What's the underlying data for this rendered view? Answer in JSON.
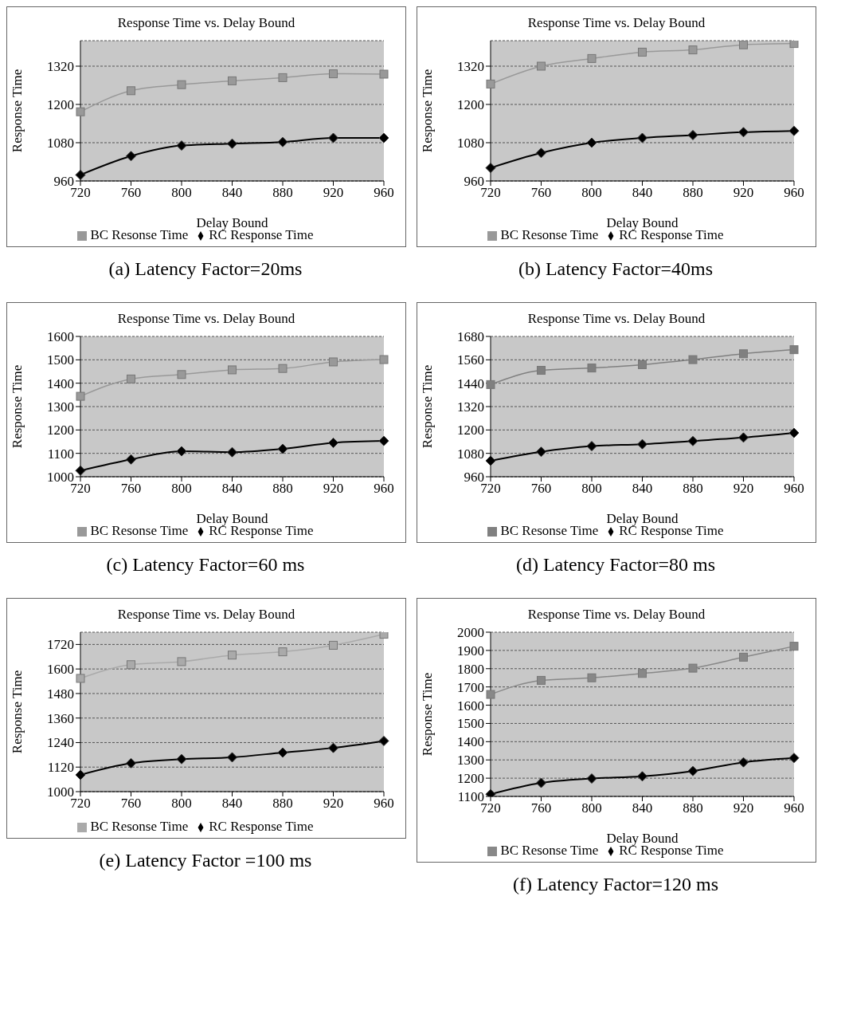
{
  "chart_data": [
    {
      "type": "line",
      "title": "Response Time vs. Delay Bound",
      "xlabel": "Delay Bound",
      "ylabel": "Response Time",
      "categories": [
        "720",
        "760",
        "800",
        "840",
        "880",
        "920",
        "960"
      ],
      "ylim": [
        960,
        1400
      ],
      "yticks": [
        960,
        1080,
        1200,
        1320
      ],
      "grid": "y",
      "legend": "bottom",
      "annotations": [
        "(a) Latency Factor=20ms"
      ],
      "series": [
        {
          "name": "RC Response Time",
          "color": "#000000",
          "marker": "diamond",
          "values": [
            979,
            1038,
            1071,
            1077,
            1082,
            1095,
            1095
          ]
        },
        {
          "name": "BC Resonse Time",
          "color": "#999999",
          "marker": "square",
          "values": [
            1177,
            1243,
            1262,
            1274,
            1284,
            1296,
            1295
          ]
        }
      ]
    },
    {
      "type": "line",
      "title": "Response Time vs. Delay Bound",
      "xlabel": "Delay Bound",
      "ylabel": "Response Time",
      "categories": [
        "720",
        "760",
        "800",
        "840",
        "880",
        "920",
        "960"
      ],
      "ylim": [
        960,
        1400
      ],
      "yticks": [
        960,
        1080,
        1200,
        1320
      ],
      "grid": "y",
      "legend": "bottom",
      "annotations": [
        "(b) Latency Factor=40ms"
      ],
      "series": [
        {
          "name": "RC Response Time",
          "color": "#000000",
          "marker": "diamond",
          "values": [
            1001,
            1048,
            1080,
            1095,
            1104,
            1113,
            1117
          ]
        },
        {
          "name": "BC Resonse Time",
          "color": "#999999",
          "marker": "square",
          "values": [
            1264,
            1320,
            1344,
            1364,
            1371,
            1387,
            1391
          ]
        }
      ]
    },
    {
      "type": "line",
      "title": "Response Time vs. Delay Bound",
      "xlabel": "Delay Bound",
      "ylabel": "Response Time",
      "categories": [
        "720",
        "760",
        "800",
        "840",
        "880",
        "920",
        "960"
      ],
      "ylim": [
        1000,
        1600
      ],
      "yticks": [
        1000,
        1100,
        1200,
        1300,
        1400,
        1500,
        1600
      ],
      "grid": "y",
      "legend": "bottom",
      "annotations": [
        "(c) Latency Factor=60 ms"
      ],
      "series": [
        {
          "name": "RC Response Time",
          "color": "#000000",
          "marker": "diamond",
          "values": [
            1026,
            1074,
            1109,
            1105,
            1119,
            1145,
            1153
          ]
        },
        {
          "name": "BC Resonse Time",
          "color": "#999999",
          "marker": "square",
          "values": [
            1344,
            1418,
            1437,
            1457,
            1463,
            1491,
            1501
          ]
        }
      ]
    },
    {
      "type": "line",
      "title": "Response Time vs. Delay Bound",
      "xlabel": "Delay Bound",
      "ylabel": "Response Time",
      "categories": [
        "720",
        "760",
        "800",
        "840",
        "880",
        "920",
        "960"
      ],
      "ylim": [
        960,
        1680
      ],
      "yticks": [
        960,
        1080,
        1200,
        1320,
        1440,
        1560,
        1680
      ],
      "grid": "y",
      "legend": "bottom",
      "annotations": [
        "(d) Latency Factor=80 ms"
      ],
      "series": [
        {
          "name": "RC Response Time",
          "color": "#000000",
          "marker": "diamond",
          "values": [
            1042,
            1088,
            1117,
            1127,
            1143,
            1161,
            1185
          ]
        },
        {
          "name": "BC Resonse Time",
          "color": "#808080",
          "marker": "square",
          "values": [
            1433,
            1506,
            1518,
            1535,
            1561,
            1591,
            1612
          ]
        }
      ]
    },
    {
      "type": "line",
      "title": "Response Time vs. Delay Bound",
      "ylabel": "Response Time",
      "categories": [
        "720",
        "760",
        "800",
        "840",
        "880",
        "920",
        "960"
      ],
      "ylim": [
        1000,
        1780
      ],
      "yticks": [
        1000,
        1120,
        1240,
        1360,
        1480,
        1600,
        1720
      ],
      "grid": "y",
      "legend": "bottom",
      "annotations": [
        "(e) Latency Factor =100 ms"
      ],
      "series": [
        {
          "name": "RC Response Time",
          "color": "#000000",
          "marker": "diamond",
          "values": [
            1082,
            1139,
            1159,
            1168,
            1191,
            1214,
            1248
          ]
        },
        {
          "name": "BC Resonse Time",
          "color": "#aaaaaa",
          "marker": "square",
          "values": [
            1554,
            1621,
            1636,
            1668,
            1684,
            1716,
            1770
          ]
        }
      ]
    },
    {
      "type": "line",
      "title": "Response Time vs. Delay Bound",
      "xlabel": "Delay Bound",
      "ylabel": "Response Time",
      "categories": [
        "720",
        "760",
        "800",
        "840",
        "880",
        "920",
        "960"
      ],
      "ylim": [
        1100,
        2000
      ],
      "yticks": [
        1100,
        1200,
        1300,
        1400,
        1500,
        1600,
        1700,
        1800,
        1900,
        2000
      ],
      "grid": "y",
      "legend": "bottom",
      "annotations": [
        "(f) Latency Factor=120 ms"
      ],
      "series": [
        {
          "name": "RC Response Time",
          "color": "#000000",
          "marker": "diamond",
          "values": [
            1112,
            1174,
            1198,
            1210,
            1239,
            1287,
            1311
          ]
        },
        {
          "name": "BC Resonse Time",
          "color": "#888888",
          "marker": "square",
          "values": [
            1659,
            1736,
            1750,
            1774,
            1803,
            1863,
            1923
          ]
        }
      ]
    }
  ]
}
